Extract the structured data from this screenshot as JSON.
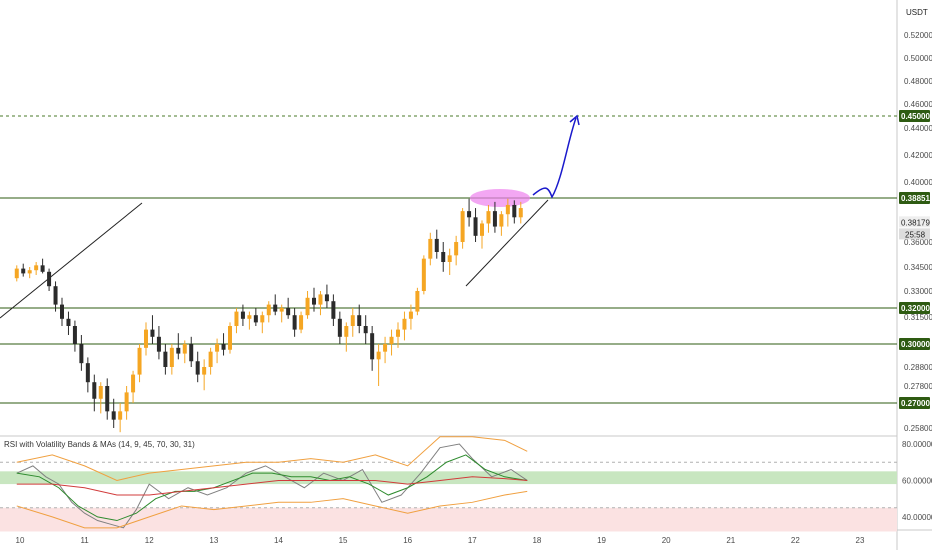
{
  "chart_data": [
    {
      "type": "candlestick",
      "currency": "USDT",
      "y_tick_labels": [
        "0.52000",
        "0.50000",
        "0.48000",
        "0.46000",
        "0.44000",
        "0.42000",
        "0.40000",
        "0.36000",
        "0.34500",
        "0.33000",
        "0.31500",
        "0.28800",
        "0.27800",
        "0.25800"
      ],
      "y_tick_values": [
        0.52,
        0.5,
        0.48,
        0.46,
        0.44,
        0.42,
        0.4,
        0.36,
        0.345,
        0.33,
        0.315,
        0.288,
        0.278,
        0.258
      ],
      "x_tick_labels": [
        "10",
        "11",
        "12",
        "13",
        "14",
        "15",
        "16",
        "17",
        "18",
        "19",
        "20",
        "21",
        "22",
        "23"
      ],
      "x_tick_values": [
        10,
        11,
        12,
        13,
        14,
        15,
        16,
        17,
        18,
        19,
        20,
        21,
        22,
        23
      ],
      "horizontal_levels": [
        {
          "label": "0.45000",
          "value": 0.45,
          "style": "dashed",
          "color": "#4a7a2a"
        },
        {
          "label": "0.38851",
          "value": 0.38851,
          "style": "solid",
          "color": "#2e5b12"
        },
        {
          "label": "0.32000",
          "value": 0.32,
          "style": "solid",
          "color": "#2e5b12"
        },
        {
          "label": "0.30000",
          "value": 0.3,
          "style": "solid",
          "color": "#2e5b12"
        },
        {
          "label": "0.27000",
          "value": 0.27,
          "style": "solid",
          "color": "#2e5b12"
        }
      ],
      "current_price": {
        "label": "0.38179",
        "value": 0.38179,
        "countdown": "25:58"
      },
      "candles": [
        [
          9.95,
          0.338,
          0.346,
          0.336,
          0.344
        ],
        [
          10.05,
          0.344,
          0.347,
          0.339,
          0.341
        ],
        [
          10.15,
          0.341,
          0.345,
          0.338,
          0.343
        ],
        [
          10.25,
          0.343,
          0.348,
          0.34,
          0.346
        ],
        [
          10.35,
          0.346,
          0.35,
          0.341,
          0.342
        ],
        [
          10.45,
          0.342,
          0.344,
          0.33,
          0.333
        ],
        [
          10.55,
          0.333,
          0.336,
          0.318,
          0.322
        ],
        [
          10.65,
          0.322,
          0.326,
          0.31,
          0.314
        ],
        [
          10.75,
          0.314,
          0.318,
          0.305,
          0.31
        ],
        [
          10.85,
          0.31,
          0.313,
          0.296,
          0.3
        ],
        [
          10.95,
          0.3,
          0.305,
          0.286,
          0.29
        ],
        [
          11.05,
          0.29,
          0.293,
          0.275,
          0.28
        ],
        [
          11.15,
          0.28,
          0.284,
          0.266,
          0.272
        ],
        [
          11.25,
          0.272,
          0.28,
          0.265,
          0.278
        ],
        [
          11.35,
          0.278,
          0.282,
          0.262,
          0.266
        ],
        [
          11.45,
          0.266,
          0.272,
          0.258,
          0.262
        ],
        [
          11.55,
          0.262,
          0.27,
          0.256,
          0.266
        ],
        [
          11.65,
          0.266,
          0.278,
          0.262,
          0.275
        ],
        [
          11.75,
          0.275,
          0.286,
          0.27,
          0.284
        ],
        [
          11.85,
          0.284,
          0.3,
          0.28,
          0.298
        ],
        [
          11.95,
          0.298,
          0.312,
          0.294,
          0.308
        ],
        [
          12.05,
          0.308,
          0.316,
          0.3,
          0.304
        ],
        [
          12.15,
          0.304,
          0.31,
          0.292,
          0.296
        ],
        [
          12.25,
          0.296,
          0.3,
          0.284,
          0.288
        ],
        [
          12.35,
          0.288,
          0.3,
          0.284,
          0.298
        ],
        [
          12.45,
          0.298,
          0.306,
          0.292,
          0.295
        ],
        [
          12.55,
          0.295,
          0.302,
          0.29,
          0.3
        ],
        [
          12.65,
          0.3,
          0.304,
          0.288,
          0.291
        ],
        [
          12.75,
          0.291,
          0.296,
          0.28,
          0.284
        ],
        [
          12.85,
          0.284,
          0.292,
          0.276,
          0.288
        ],
        [
          12.95,
          0.288,
          0.298,
          0.284,
          0.296
        ],
        [
          13.05,
          0.296,
          0.303,
          0.29,
          0.3
        ],
        [
          13.15,
          0.3,
          0.306,
          0.294,
          0.297
        ],
        [
          13.25,
          0.297,
          0.312,
          0.295,
          0.31
        ],
        [
          13.35,
          0.31,
          0.32,
          0.306,
          0.318
        ],
        [
          13.45,
          0.318,
          0.322,
          0.31,
          0.314
        ],
        [
          13.55,
          0.314,
          0.318,
          0.308,
          0.316
        ],
        [
          13.65,
          0.316,
          0.32,
          0.31,
          0.312
        ],
        [
          13.75,
          0.312,
          0.318,
          0.306,
          0.316
        ],
        [
          13.85,
          0.316,
          0.324,
          0.312,
          0.322
        ],
        [
          13.95,
          0.322,
          0.328,
          0.316,
          0.318
        ],
        [
          14.05,
          0.318,
          0.322,
          0.312,
          0.32
        ],
        [
          14.15,
          0.32,
          0.326,
          0.314,
          0.316
        ],
        [
          14.25,
          0.316,
          0.32,
          0.304,
          0.308
        ],
        [
          14.35,
          0.308,
          0.318,
          0.306,
          0.316
        ],
        [
          14.45,
          0.316,
          0.33,
          0.314,
          0.326
        ],
        [
          14.55,
          0.326,
          0.332,
          0.318,
          0.322
        ],
        [
          14.65,
          0.322,
          0.33,
          0.316,
          0.328
        ],
        [
          14.75,
          0.328,
          0.334,
          0.32,
          0.324
        ],
        [
          14.85,
          0.324,
          0.328,
          0.31,
          0.314
        ],
        [
          14.95,
          0.314,
          0.318,
          0.3,
          0.304
        ],
        [
          15.05,
          0.304,
          0.312,
          0.296,
          0.31
        ],
        [
          15.15,
          0.31,
          0.32,
          0.304,
          0.316
        ],
        [
          15.25,
          0.316,
          0.322,
          0.306,
          0.31
        ],
        [
          15.35,
          0.31,
          0.316,
          0.3,
          0.306
        ],
        [
          15.45,
          0.306,
          0.31,
          0.286,
          0.292
        ],
        [
          15.55,
          0.292,
          0.3,
          0.278,
          0.296
        ],
        [
          15.65,
          0.296,
          0.304,
          0.29,
          0.3
        ],
        [
          15.75,
          0.3,
          0.308,
          0.294,
          0.304
        ],
        [
          15.85,
          0.304,
          0.312,
          0.298,
          0.308
        ],
        [
          15.95,
          0.308,
          0.318,
          0.302,
          0.314
        ],
        [
          16.05,
          0.314,
          0.322,
          0.308,
          0.318
        ],
        [
          16.15,
          0.318,
          0.332,
          0.316,
          0.33
        ],
        [
          16.25,
          0.33,
          0.352,
          0.328,
          0.35
        ],
        [
          16.35,
          0.35,
          0.366,
          0.346,
          0.362
        ],
        [
          16.45,
          0.362,
          0.368,
          0.35,
          0.354
        ],
        [
          16.55,
          0.354,
          0.36,
          0.342,
          0.348
        ],
        [
          16.65,
          0.348,
          0.356,
          0.34,
          0.352
        ],
        [
          16.75,
          0.352,
          0.364,
          0.346,
          0.36
        ],
        [
          16.85,
          0.36,
          0.382,
          0.356,
          0.38
        ],
        [
          16.95,
          0.38,
          0.388,
          0.37,
          0.376
        ],
        [
          17.05,
          0.376,
          0.382,
          0.36,
          0.364
        ],
        [
          17.15,
          0.364,
          0.374,
          0.356,
          0.372
        ],
        [
          17.25,
          0.372,
          0.384,
          0.366,
          0.38
        ],
        [
          17.35,
          0.38,
          0.386,
          0.366,
          0.37
        ],
        [
          17.45,
          0.37,
          0.38,
          0.364,
          0.378
        ],
        [
          17.55,
          0.378,
          0.388,
          0.37,
          0.384
        ],
        [
          17.65,
          0.384,
          0.387,
          0.372,
          0.376
        ],
        [
          17.75,
          0.376,
          0.386,
          0.372,
          0.382
        ]
      ],
      "colors": {
        "up": "#f5a623",
        "down": "#2b2b2b"
      }
    },
    {
      "type": "line",
      "title": "RSI with Volatility Bands & MAs (14, 9, 45, 70, 30, 31)",
      "y_tick_labels": [
        "80.00000",
        "60.00000",
        "40.00000"
      ],
      "y_tick_values": [
        80,
        60,
        40
      ],
      "series": [
        {
          "color": "#808080",
          "x": [
            9.95,
            10.2,
            10.4,
            10.6,
            10.8,
            11.0,
            11.2,
            11.4,
            11.6,
            11.8,
            12.0,
            12.3,
            12.6,
            12.9,
            13.2,
            13.5,
            13.8,
            14.1,
            14.4,
            14.7,
            15.0,
            15.3,
            15.6,
            15.9,
            16.2,
            16.5,
            16.8,
            17.0,
            17.3,
            17.6,
            17.85
          ],
          "values": [
            64,
            68,
            62,
            58,
            48,
            42,
            38,
            36,
            34,
            44,
            58,
            50,
            56,
            52,
            56,
            64,
            68,
            62,
            56,
            64,
            60,
            66,
            48,
            52,
            64,
            78,
            80,
            72,
            62,
            66,
            60
          ]
        },
        {
          "color": "#2e8b2e",
          "x": [
            9.95,
            10.3,
            10.6,
            10.9,
            11.2,
            11.5,
            11.8,
            12.1,
            12.4,
            12.7,
            13.0,
            13.3,
            13.6,
            13.9,
            14.2,
            14.5,
            14.8,
            15.1,
            15.4,
            15.7,
            16.0,
            16.3,
            16.6,
            16.9,
            17.2,
            17.5,
            17.85
          ],
          "values": [
            64,
            62,
            56,
            46,
            40,
            38,
            42,
            50,
            54,
            54,
            56,
            60,
            64,
            64,
            62,
            62,
            60,
            62,
            58,
            52,
            56,
            62,
            70,
            74,
            66,
            62,
            60
          ]
        },
        {
          "color": "#d13b3b",
          "x": [
            9.95,
            10.5,
            11.0,
            11.5,
            12.0,
            12.5,
            13.0,
            13.5,
            14.0,
            14.5,
            15.0,
            15.5,
            16.0,
            16.5,
            17.0,
            17.5,
            17.85
          ],
          "values": [
            58,
            58,
            56,
            52,
            52,
            54,
            56,
            58,
            60,
            60,
            60,
            60,
            58,
            60,
            62,
            61,
            60
          ]
        },
        {
          "color": "#f0a040",
          "x": [
            9.95,
            10.5,
            11.0,
            11.5,
            12.0,
            12.5,
            13.0,
            13.5,
            14.0,
            14.5,
            15.0,
            15.5,
            16.0,
            16.5,
            17.0,
            17.5,
            17.85
          ],
          "values": [
            70,
            74,
            68,
            60,
            64,
            66,
            68,
            70,
            70,
            72,
            70,
            74,
            68,
            84,
            84,
            82,
            76
          ]
        },
        {
          "color": "#f0a040",
          "x": [
            9.95,
            10.5,
            11.0,
            11.5,
            12.0,
            12.5,
            13.0,
            13.5,
            14.0,
            14.5,
            15.0,
            15.5,
            16.0,
            16.5,
            17.0,
            17.5,
            17.85
          ],
          "values": [
            46,
            40,
            34,
            34,
            40,
            46,
            44,
            46,
            48,
            48,
            50,
            46,
            42,
            46,
            48,
            52,
            54
          ]
        }
      ],
      "bands": [
        {
          "from": 58,
          "to": 65,
          "color": "#c8e6c0"
        },
        {
          "from": 32,
          "to": 45,
          "color": "#fbe2e2"
        }
      ],
      "dashed_levels": [
        70,
        45
      ]
    }
  ]
}
